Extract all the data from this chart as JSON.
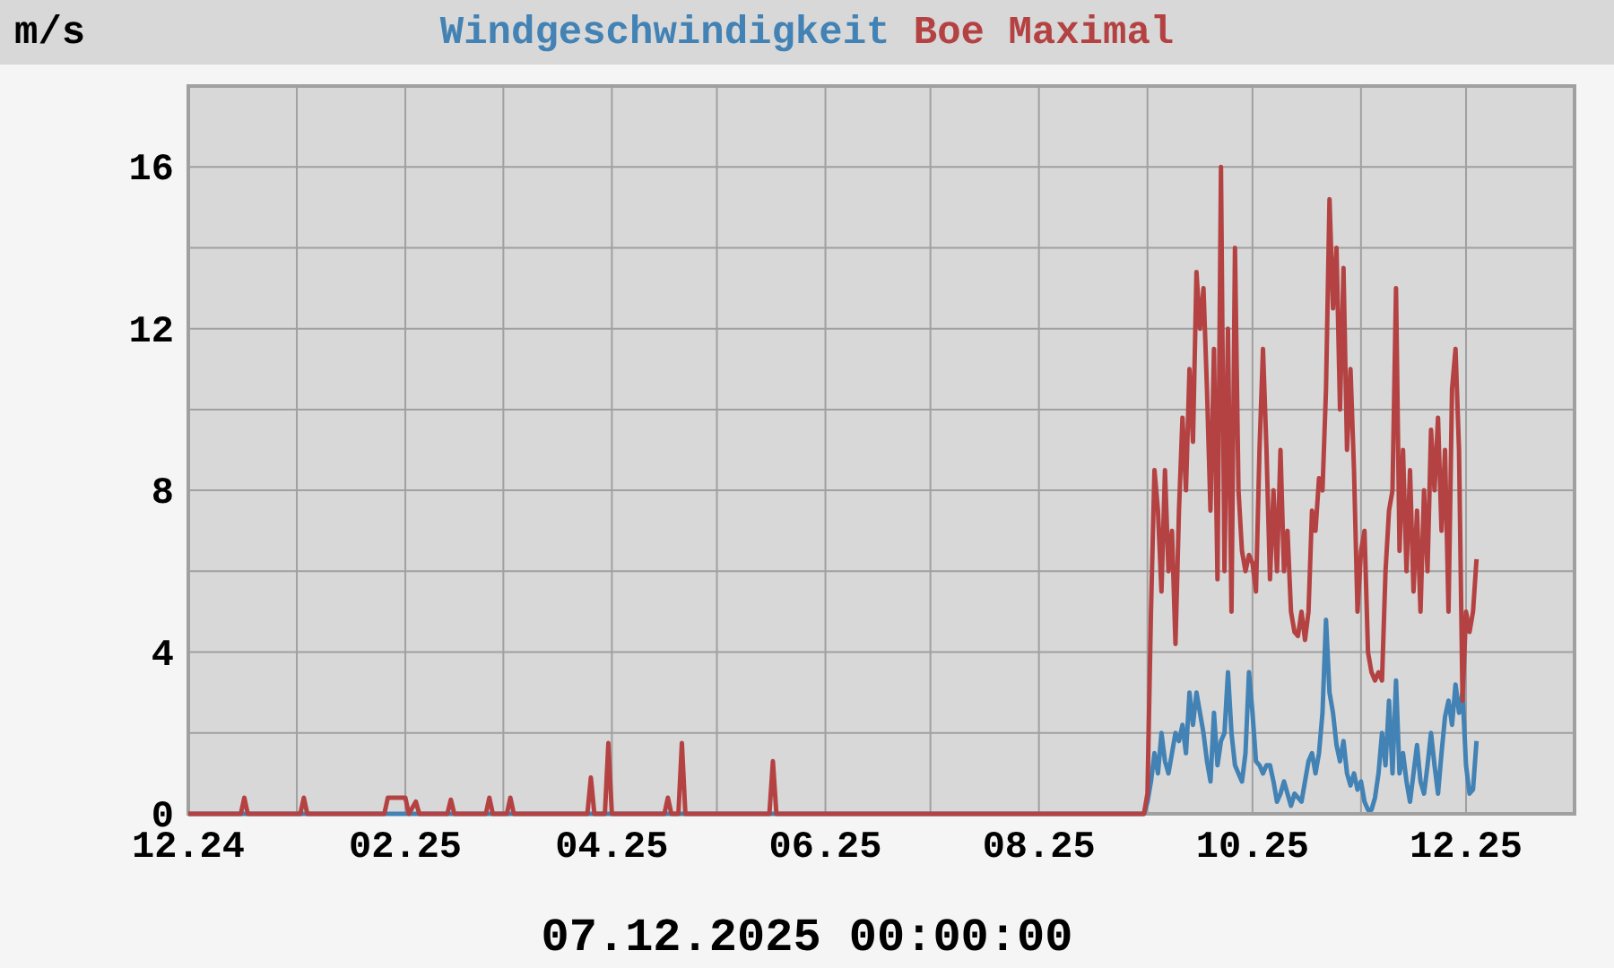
{
  "chart_data": {
    "type": "line",
    "ylabel": "m/s",
    "xlabel": "07.12.2025 00:00:00",
    "legend": "top",
    "grid": true,
    "marker": "none",
    "line_style": "solid",
    "xlim": [
      "2024-12-01",
      "2026-01-01"
    ],
    "xticks": [
      {
        "value": "2024-12-01",
        "label": "12.24"
      },
      {
        "value": "2025-01-01",
        "label": null
      },
      {
        "value": "2025-02-01",
        "label": "02.25"
      },
      {
        "value": "2025-03-01",
        "label": null
      },
      {
        "value": "2025-04-01",
        "label": "04.25"
      },
      {
        "value": "2025-05-01",
        "label": null
      },
      {
        "value": "2025-06-01",
        "label": "06.25"
      },
      {
        "value": "2025-07-01",
        "label": null
      },
      {
        "value": "2025-08-01",
        "label": "08.25"
      },
      {
        "value": "2025-09-01",
        "label": null
      },
      {
        "value": "2025-10-01",
        "label": "10.25"
      },
      {
        "value": "2025-11-01",
        "label": null
      },
      {
        "value": "2025-12-01",
        "label": "12.25"
      }
    ],
    "ylim": [
      0,
      18
    ],
    "yticks": [
      0,
      {
        "value": 2,
        "label": null
      },
      4,
      {
        "value": 6,
        "label": null
      },
      8,
      {
        "value": 10,
        "label": null
      },
      12,
      {
        "value": 14,
        "label": null
      },
      16
    ],
    "series": [
      {
        "name": "Windgeschwindigkeit",
        "color": "#4282b4",
        "x": [
          "2024-12-01",
          "2025-08-31",
          "2025-09-01",
          "2025-09-02",
          "2025-09-03",
          "2025-09-04",
          "2025-09-05",
          "2025-09-06",
          "2025-09-07",
          "2025-09-08",
          "2025-09-09",
          "2025-09-10",
          "2025-09-11",
          "2025-09-12",
          "2025-09-13",
          "2025-09-14",
          "2025-09-15",
          "2025-09-16",
          "2025-09-17",
          "2025-09-18",
          "2025-09-19",
          "2025-09-20",
          "2025-09-21",
          "2025-09-22",
          "2025-09-23",
          "2025-09-24",
          "2025-09-25",
          "2025-09-26",
          "2025-09-27",
          "2025-09-28",
          "2025-09-29",
          "2025-09-30",
          "2025-10-01",
          "2025-10-02",
          "2025-10-03",
          "2025-10-04",
          "2025-10-05",
          "2025-10-06",
          "2025-10-07",
          "2025-10-08",
          "2025-10-09",
          "2025-10-10",
          "2025-10-11",
          "2025-10-12",
          "2025-10-13",
          "2025-10-14",
          "2025-10-15",
          "2025-10-16",
          "2025-10-17",
          "2025-10-18",
          "2025-10-19",
          "2025-10-20",
          "2025-10-21",
          "2025-10-22",
          "2025-10-23",
          "2025-10-24",
          "2025-10-25",
          "2025-10-26",
          "2025-10-27",
          "2025-10-28",
          "2025-10-29",
          "2025-10-30",
          "2025-10-31",
          "2025-11-01",
          "2025-11-02",
          "2025-11-03",
          "2025-11-04",
          "2025-11-05",
          "2025-11-06",
          "2025-11-07",
          "2025-11-08",
          "2025-11-09",
          "2025-11-10",
          "2025-11-11",
          "2025-11-12",
          "2025-11-13",
          "2025-11-14",
          "2025-11-15",
          "2025-11-16",
          "2025-11-17",
          "2025-11-18",
          "2025-11-19",
          "2025-11-20",
          "2025-11-21",
          "2025-11-22",
          "2025-11-23",
          "2025-11-24",
          "2025-11-25",
          "2025-11-26",
          "2025-11-27",
          "2025-11-28",
          "2025-11-29",
          "2025-11-30",
          "2025-12-01",
          "2025-12-02",
          "2025-12-03",
          "2025-12-04"
        ],
        "values": [
          0,
          0,
          0.3,
          0.8,
          1.5,
          1.0,
          2.0,
          1.3,
          1.0,
          1.5,
          2.0,
          1.8,
          2.2,
          1.5,
          3.0,
          2.2,
          3.0,
          2.5,
          2.0,
          1.3,
          0.8,
          2.5,
          1.2,
          1.8,
          2.0,
          3.5,
          2.0,
          1.2,
          1.0,
          0.8,
          1.5,
          3.5,
          2.5,
          1.3,
          1.2,
          1.0,
          1.2,
          1.2,
          0.8,
          0.3,
          0.5,
          0.8,
          0.5,
          0.2,
          0.5,
          0.4,
          0.3,
          0.8,
          1.3,
          1.5,
          1.0,
          1.5,
          2.5,
          4.8,
          3.0,
          2.5,
          1.7,
          1.3,
          1.8,
          1.0,
          0.7,
          1.0,
          0.6,
          0.8,
          0.3,
          0.1,
          0.1,
          0.4,
          1.0,
          2.0,
          1.2,
          2.8,
          1.0,
          3.3,
          1.0,
          1.5,
          0.8,
          0.3,
          1.0,
          1.7,
          0.8,
          0.5,
          1.2,
          2.0,
          1.2,
          0.5,
          1.5,
          2.4,
          2.8,
          2.2,
          3.2,
          2.5,
          3.0,
          1.2,
          0.5,
          0.6,
          1.8
        ]
      },
      {
        "name": "Boe Maximal",
        "color": "#b44242",
        "x": [
          "2024-12-01",
          "2024-12-16",
          "2024-12-17",
          "2024-12-18",
          "2025-01-02",
          "2025-01-03",
          "2025-01-04",
          "2025-01-26",
          "2025-01-27",
          "2025-02-01",
          "2025-02-02",
          "2025-02-04",
          "2025-02-05",
          "2025-02-13",
          "2025-02-14",
          "2025-02-15",
          "2025-02-24",
          "2025-02-25",
          "2025-02-26",
          "2025-03-02",
          "2025-03-03",
          "2025-03-04",
          "2025-03-25",
          "2025-03-26",
          "2025-03-27",
          "2025-03-30",
          "2025-03-31",
          "2025-04-01",
          "2025-04-16",
          "2025-04-17",
          "2025-04-18",
          "2025-04-20",
          "2025-04-21",
          "2025-04-22",
          "2025-05-16",
          "2025-05-17",
          "2025-05-18",
          "2025-08-31",
          "2025-09-01",
          "2025-09-02",
          "2025-09-03",
          "2025-09-04",
          "2025-09-05",
          "2025-09-06",
          "2025-09-07",
          "2025-09-08",
          "2025-09-09",
          "2025-09-10",
          "2025-09-11",
          "2025-09-12",
          "2025-09-13",
          "2025-09-14",
          "2025-09-15",
          "2025-09-16",
          "2025-09-17",
          "2025-09-18",
          "2025-09-19",
          "2025-09-20",
          "2025-09-21",
          "2025-09-22",
          "2025-09-23",
          "2025-09-24",
          "2025-09-25",
          "2025-09-26",
          "2025-09-27",
          "2025-09-28",
          "2025-09-29",
          "2025-09-30",
          "2025-10-01",
          "2025-10-02",
          "2025-10-03",
          "2025-10-04",
          "2025-10-05",
          "2025-10-06",
          "2025-10-07",
          "2025-10-08",
          "2025-10-09",
          "2025-10-10",
          "2025-10-11",
          "2025-10-12",
          "2025-10-13",
          "2025-10-14",
          "2025-10-15",
          "2025-10-16",
          "2025-10-17",
          "2025-10-18",
          "2025-10-19",
          "2025-10-20",
          "2025-10-21",
          "2025-10-22",
          "2025-10-23",
          "2025-10-24",
          "2025-10-25",
          "2025-10-26",
          "2025-10-27",
          "2025-10-28",
          "2025-10-29",
          "2025-10-30",
          "2025-10-31",
          "2025-11-01",
          "2025-11-02",
          "2025-11-03",
          "2025-11-04",
          "2025-11-05",
          "2025-11-06",
          "2025-11-07",
          "2025-11-08",
          "2025-11-09",
          "2025-11-10",
          "2025-11-11",
          "2025-11-12",
          "2025-11-13",
          "2025-11-14",
          "2025-11-15",
          "2025-11-16",
          "2025-11-17",
          "2025-11-18",
          "2025-11-19",
          "2025-11-20",
          "2025-11-21",
          "2025-11-22",
          "2025-11-23",
          "2025-11-24",
          "2025-11-25",
          "2025-11-26",
          "2025-11-27",
          "2025-11-28",
          "2025-11-29",
          "2025-11-30",
          "2025-12-01",
          "2025-12-02",
          "2025-12-03",
          "2025-12-04"
        ],
        "values": [
          0,
          0,
          0.4,
          0,
          0,
          0.4,
          0,
          0,
          0.4,
          0.4,
          0,
          0.3,
          0,
          0,
          0.35,
          0,
          0,
          0.4,
          0,
          0,
          0.4,
          0,
          0,
          0.9,
          0,
          0,
          1.75,
          0,
          0,
          0.4,
          0,
          0,
          1.75,
          0,
          0,
          1.3,
          0,
          0,
          0.5,
          5.0,
          8.5,
          7.5,
          5.5,
          8.5,
          6.0,
          7.0,
          4.2,
          7.5,
          9.8,
          8.0,
          11.0,
          9.2,
          13.4,
          12.0,
          13.0,
          10.5,
          7.5,
          11.5,
          5.8,
          16.0,
          6.0,
          12.0,
          5.0,
          14.0,
          8.0,
          6.5,
          6.0,
          6.4,
          6.2,
          5.5,
          9.0,
          11.5,
          9.0,
          5.8,
          8.0,
          6.0,
          9.0,
          6.0,
          7.0,
          5.0,
          4.5,
          4.4,
          5.0,
          4.3,
          5.0,
          7.5,
          7.0,
          8.3,
          8.0,
          10.5,
          15.2,
          12.5,
          14.0,
          10.0,
          13.5,
          9.0,
          11.0,
          8.5,
          5.0,
          6.5,
          7.0,
          4.0,
          3.5,
          3.3,
          3.5,
          3.3,
          6.0,
          7.5,
          8.0,
          13.0,
          6.5,
          9.0,
          6.0,
          8.5,
          5.5,
          7.5,
          5.0,
          8.0,
          6.0,
          9.5,
          8.0,
          9.8,
          7.0,
          9.0,
          5.0,
          10.5,
          11.5,
          9.0,
          2.8,
          5.0,
          4.5,
          5.0,
          6.3
        ]
      }
    ]
  }
}
